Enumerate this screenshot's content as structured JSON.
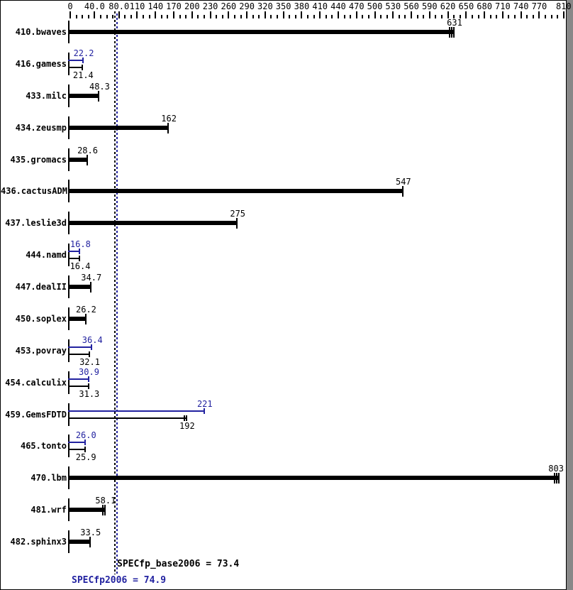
{
  "chart_data": {
    "type": "bar",
    "orientation": "horizontal",
    "title": "",
    "legend": "none",
    "grid": "off",
    "x_axis": {
      "position": "top",
      "range": [
        0,
        815
      ],
      "minor_tick_step": 10,
      "tick_values": [
        0,
        40,
        80,
        110,
        140,
        170,
        200,
        230,
        260,
        290,
        320,
        350,
        380,
        410,
        440,
        470,
        500,
        530,
        560,
        590,
        620,
        650,
        680,
        710,
        740,
        770,
        810
      ],
      "tick_labels": [
        "0",
        "40.0",
        "80.0",
        "110",
        "140",
        "170",
        "200",
        "230",
        "260",
        "290",
        "320",
        "350",
        "380",
        "410",
        "440",
        "470",
        "500",
        "530",
        "560",
        "590",
        "620",
        "650",
        "680",
        "710",
        "740",
        "770",
        "810"
      ]
    },
    "series_meaning": {
      "peak_bar": "SPECfp2006 (peak, blue, upper thin bar)",
      "base_bar": "SPECfp_base2006 (base, black)"
    },
    "benchmarks": [
      {
        "name": "410.bwaves",
        "peak": null,
        "peak_label": "",
        "base": 631,
        "base_label": "631",
        "base_end_ticks": 3,
        "peak_end_ticks": 0
      },
      {
        "name": "416.gamess",
        "peak": 22.2,
        "peak_label": "22.2",
        "base": 21.4,
        "base_label": "21.4",
        "base_end_ticks": 1,
        "peak_end_ticks": 1
      },
      {
        "name": "433.milc",
        "peak": null,
        "peak_label": "",
        "base": 48.3,
        "base_label": "48.3",
        "base_end_ticks": 1,
        "peak_end_ticks": 0
      },
      {
        "name": "434.zeusmp",
        "peak": null,
        "peak_label": "",
        "base": 162,
        "base_label": "162",
        "base_end_ticks": 1,
        "peak_end_ticks": 0
      },
      {
        "name": "435.gromacs",
        "peak": null,
        "peak_label": "",
        "base": 28.6,
        "base_label": "28.6",
        "base_end_ticks": 1,
        "peak_end_ticks": 0
      },
      {
        "name": "436.cactusADM",
        "peak": null,
        "peak_label": "",
        "base": 547,
        "base_label": "547",
        "base_end_ticks": 1,
        "peak_end_ticks": 0
      },
      {
        "name": "437.leslie3d",
        "peak": null,
        "peak_label": "",
        "base": 275,
        "base_label": "275",
        "base_end_ticks": 1,
        "peak_end_ticks": 0
      },
      {
        "name": "444.namd",
        "peak": 16.8,
        "peak_label": "16.8",
        "base": 16.4,
        "base_label": "16.4",
        "base_end_ticks": 1,
        "peak_end_ticks": 1
      },
      {
        "name": "447.dealII",
        "peak": null,
        "peak_label": "",
        "base": 34.7,
        "base_label": "34.7",
        "base_end_ticks": 1,
        "peak_end_ticks": 0
      },
      {
        "name": "450.soplex",
        "peak": null,
        "peak_label": "",
        "base": 26.2,
        "base_label": "26.2",
        "base_end_ticks": 1,
        "peak_end_ticks": 0
      },
      {
        "name": "453.povray",
        "peak": 36.4,
        "peak_label": "36.4",
        "base": 32.1,
        "base_label": "32.1",
        "base_end_ticks": 1,
        "peak_end_ticks": 1
      },
      {
        "name": "454.calculix",
        "peak": 30.9,
        "peak_label": "30.9",
        "base": 31.3,
        "base_label": "31.3",
        "base_end_ticks": 1,
        "peak_end_ticks": 1
      },
      {
        "name": "459.GemsFDTD",
        "peak": 221,
        "peak_label": "221",
        "base": 192,
        "base_label": "192",
        "base_end_ticks": 2,
        "peak_end_ticks": 1
      },
      {
        "name": "465.tonto",
        "peak": 26.0,
        "peak_label": "26.0",
        "base": 25.9,
        "base_label": "25.9",
        "base_end_ticks": 1,
        "peak_end_ticks": 1
      },
      {
        "name": "470.lbm",
        "peak": null,
        "peak_label": "",
        "base": 803,
        "base_label": "803",
        "base_end_ticks": 3,
        "peak_end_ticks": 0
      },
      {
        "name": "481.wrf",
        "peak": null,
        "peak_label": "",
        "base": 58.1,
        "base_label": "58.1",
        "base_end_ticks": 2,
        "peak_end_ticks": 0
      },
      {
        "name": "482.sphinx3",
        "peak": null,
        "peak_label": "",
        "base": 33.5,
        "base_label": "33.5",
        "base_end_ticks": 1,
        "peak_end_ticks": 0
      }
    ],
    "reference_lines": [
      {
        "label": "SPECfp_base2006 = 73.4",
        "value": 73.4,
        "color": "#000000",
        "style": "dotted-vertical"
      },
      {
        "label": "SPECfp2006 = 74.9",
        "value": 74.9,
        "color": "#2222a0",
        "style": "dotted-vertical"
      }
    ],
    "colors": {
      "base_bar": "#000000",
      "peak_bar": "#2222a0",
      "background": "#ffffff",
      "axis_text": "#000000"
    }
  }
}
